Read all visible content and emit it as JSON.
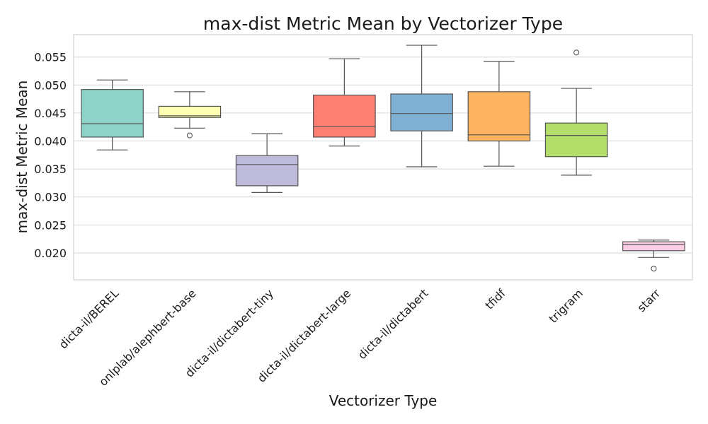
{
  "chart_data": {
    "type": "box",
    "title": "max-dist Metric Mean by Vectorizer Type",
    "xlabel": "Vectorizer Type",
    "ylabel": "max-dist Metric Mean",
    "ylim": [
      0.0152,
      0.059
    ],
    "yticks": [
      0.02,
      0.025,
      0.03,
      0.035,
      0.04,
      0.045,
      0.05,
      0.055
    ],
    "ytick_labels": [
      "0.020",
      "0.025",
      "0.030",
      "0.035",
      "0.040",
      "0.045",
      "0.050",
      "0.055"
    ],
    "grid": true,
    "categories": [
      "dicta-il/BEREL",
      "onlplab/alephbert-base",
      "dicta-il/dictabert-tiny",
      "dicta-il/dictabert-large",
      "dicta-il/dictabert",
      "tfidf",
      "trigram",
      "starr"
    ],
    "boxes": [
      {
        "category": "dicta-il/BEREL",
        "whisker_low": 0.0384,
        "q1": 0.0407,
        "median": 0.0431,
        "q3": 0.0492,
        "whisker_high": 0.0509,
        "outliers": [],
        "color": "#8dd3c7"
      },
      {
        "category": "onlplab/alephbert-base",
        "whisker_low": 0.0423,
        "q1": 0.0442,
        "median": 0.0445,
        "q3": 0.0462,
        "whisker_high": 0.0488,
        "outliers": [
          0.041
        ],
        "color": "#ffffb3"
      },
      {
        "category": "dicta-il/dictabert-tiny",
        "whisker_low": 0.0308,
        "q1": 0.032,
        "median": 0.0358,
        "q3": 0.0374,
        "whisker_high": 0.0413,
        "outliers": [],
        "color": "#bebada"
      },
      {
        "category": "dicta-il/dictabert-large",
        "whisker_low": 0.0391,
        "q1": 0.0407,
        "median": 0.0426,
        "q3": 0.0482,
        "whisker_high": 0.0547,
        "outliers": [],
        "color": "#fb8072"
      },
      {
        "category": "dicta-il/dictabert",
        "whisker_low": 0.0354,
        "q1": 0.0418,
        "median": 0.0449,
        "q3": 0.0484,
        "whisker_high": 0.0571,
        "outliers": [],
        "color": "#80b1d3"
      },
      {
        "category": "tfidf",
        "whisker_low": 0.0355,
        "q1": 0.04,
        "median": 0.0411,
        "q3": 0.0488,
        "whisker_high": 0.0542,
        "outliers": [],
        "color": "#fdb462"
      },
      {
        "category": "trigram",
        "whisker_low": 0.0339,
        "q1": 0.0372,
        "median": 0.041,
        "q3": 0.0432,
        "whisker_high": 0.0494,
        "outliers": [
          0.0558
        ],
        "color": "#b3de69"
      },
      {
        "category": "starr",
        "whisker_low": 0.0192,
        "q1": 0.0204,
        "median": 0.0215,
        "q3": 0.022,
        "whisker_high": 0.0223,
        "outliers": [
          0.0172
        ],
        "color": "#fccde5"
      }
    ]
  }
}
